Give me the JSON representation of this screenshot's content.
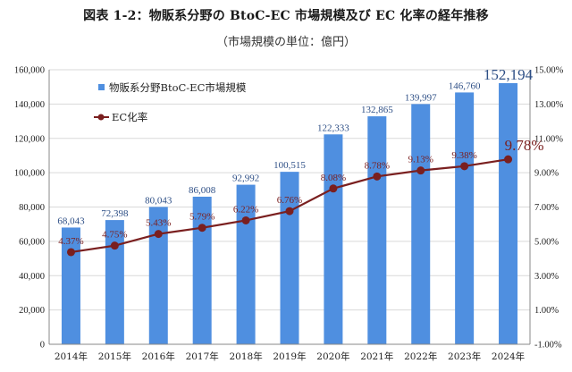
{
  "header": {
    "title": "図表 1-2：物販系分野の BtoC-EC 市場規模及び EC 化率の経年推移",
    "unit_note": "（市場規模の単位：億円）"
  },
  "chart_data": {
    "type": "bar",
    "categories": [
      "2014年",
      "2015年",
      "2016年",
      "2017年",
      "2018年",
      "2019年",
      "2020年",
      "2021年",
      "2022年",
      "2023年",
      "2024年"
    ],
    "series": [
      {
        "name": "物販系分野BtoC-EC市場規模",
        "type": "bar",
        "axis": "left",
        "color": "#4f8fe0",
        "values": [
          68043,
          72398,
          80043,
          86008,
          92992,
          100515,
          122333,
          132865,
          139997,
          146760,
          152194
        ],
        "labels": [
          "68,043",
          "72,398",
          "80,043",
          "86,008",
          "92,992",
          "100,515",
          "122,333",
          "132,865",
          "139,997",
          "146,760",
          "152,194"
        ]
      },
      {
        "name": "EC化率",
        "type": "line",
        "axis": "right",
        "color": "#7a1f1f",
        "values": [
          4.37,
          4.75,
          5.43,
          5.79,
          6.22,
          6.76,
          8.08,
          8.78,
          9.13,
          9.38,
          9.78
        ],
        "labels": [
          "4.37%",
          "4.75%",
          "5.43%",
          "5.79%",
          "6.22%",
          "6.76%",
          "8.08%",
          "8.78%",
          "9.13%",
          "9.38%",
          "9.78%"
        ]
      }
    ],
    "ylim_left": [
      0,
      160000
    ],
    "yticks_left": [
      "0",
      "20,000",
      "40,000",
      "60,000",
      "80,000",
      "100,000",
      "120,000",
      "140,000",
      "160,000"
    ],
    "ylim_right": [
      -1.0,
      15.0
    ],
    "yticks_right": [
      "-1.00%",
      "1.00%",
      "3.00%",
      "5.00%",
      "7.00%",
      "9.00%",
      "11.00%",
      "13.00%",
      "15.00%"
    ],
    "grid": true,
    "legend_position": "top-left",
    "highlight_last": true
  }
}
